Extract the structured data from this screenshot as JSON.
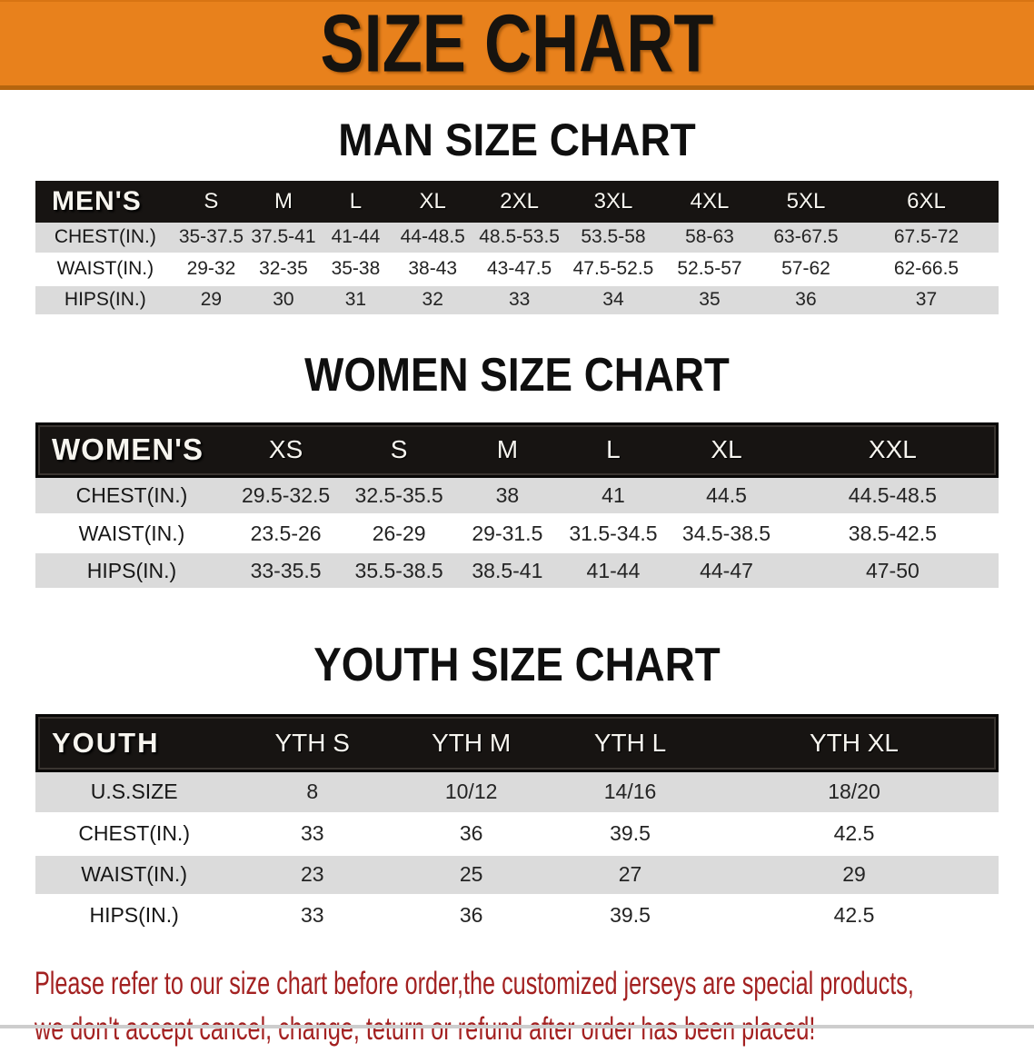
{
  "banner": {
    "title": "SIZE CHART"
  },
  "sections": [
    {
      "title": "MAN SIZE CHART",
      "table": {
        "header": [
          "MEN'S",
          "S",
          "M",
          "L",
          "XL",
          "2XL",
          "3XL",
          "4XL",
          "5XL",
          "6XL"
        ],
        "rows": [
          {
            "label": "CHEST(IN.)",
            "values": [
              "35-37.5",
              "37.5-41",
              "41-44",
              "44-48.5",
              "48.5-53.5",
              "53.5-58",
              "58-63",
              "63-67.5",
              "67.5-72"
            ]
          },
          {
            "label": "WAIST(IN.)",
            "values": [
              "29-32",
              "32-35",
              "35-38",
              "38-43",
              "43-47.5",
              "47.5-52.5",
              "52.5-57",
              "57-62",
              "62-66.5"
            ]
          },
          {
            "label": "HIPS(IN.)",
            "values": [
              "29",
              "30",
              "31",
              "32",
              "33",
              "34",
              "35",
              "36",
              "37"
            ]
          }
        ]
      }
    },
    {
      "title": "WOMEN SIZE CHART",
      "table": {
        "header": [
          "WOMEN'S",
          "XS",
          "S",
          "M",
          "L",
          "XL",
          "XXL"
        ],
        "rows": [
          {
            "label": "CHEST(IN.)",
            "values": [
              "29.5-32.5",
              "32.5-35.5",
              "38",
              "41",
              "44.5",
              "44.5-48.5"
            ]
          },
          {
            "label": "WAIST(IN.)",
            "values": [
              "23.5-26",
              "26-29",
              "29-31.5",
              "31.5-34.5",
              "34.5-38.5",
              "38.5-42.5"
            ]
          },
          {
            "label": "HIPS(IN.)",
            "values": [
              "33-35.5",
              "35.5-38.5",
              "38.5-41",
              "41-44",
              "44-47",
              "47-50"
            ]
          }
        ]
      }
    },
    {
      "title": "YOUTH SIZE CHART",
      "table": {
        "header": [
          "YOUTH",
          "YTH S",
          "YTH M",
          "YTH L",
          "YTH XL"
        ],
        "rows": [
          {
            "label": "U.S.SIZE",
            "values": [
              "8",
              "10/12",
              "14/16",
              "18/20"
            ]
          },
          {
            "label": "CHEST(IN.)",
            "values": [
              "33",
              "36",
              "39.5",
              "42.5"
            ]
          },
          {
            "label": "WAIST(IN.)",
            "values": [
              "23",
              "25",
              "27",
              "29"
            ]
          },
          {
            "label": "HIPS(IN.)",
            "values": [
              "33",
              "36",
              "39.5",
              "42.5"
            ]
          }
        ]
      }
    }
  ],
  "footer": {
    "line1": "Please refer to our size chart before order,the customized jerseys are special products,",
    "line2": "we don't accept cancel, change, teturn or refund after order has been placed!"
  },
  "colors": {
    "banner_bg": "#E8811C",
    "banner_border": "#B5650E",
    "header_bg": "#171412",
    "row_stripe": "#DBDBDB",
    "footer_text": "#A32121"
  }
}
